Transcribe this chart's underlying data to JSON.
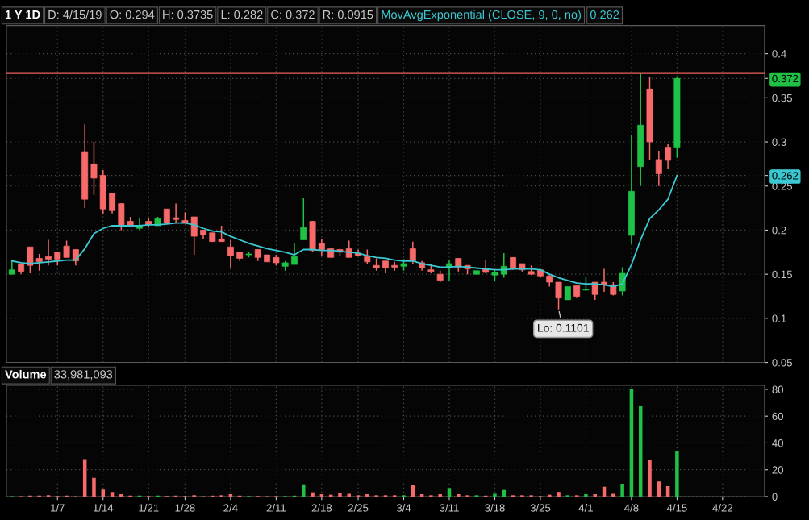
{
  "chart_data": [
    {
      "type": "candlestick",
      "title": "1 Y 1D",
      "categories": [
        null,
        null,
        null,
        null,
        null,
        null,
        null,
        null,
        null,
        null,
        null,
        null,
        null,
        null,
        null,
        null,
        null,
        null,
        null,
        null,
        null,
        null,
        null,
        null,
        null,
        null,
        null,
        null,
        null,
        null,
        null,
        null,
        null,
        null,
        null,
        null,
        null,
        null,
        null,
        null,
        null,
        null,
        null,
        null,
        null,
        null,
        null,
        null,
        null,
        null,
        null,
        null,
        null,
        null,
        null,
        null,
        null,
        null,
        null,
        null,
        null,
        null,
        null,
        null,
        null,
        null,
        null,
        null,
        null,
        null,
        null,
        null,
        null,
        null,
        null,
        null,
        null,
        null,
        null,
        null,
        null,
        null,
        null
      ],
      "ohlc": [
        [
          0.15,
          0.166,
          0.15,
          0.155
        ],
        [
          0.162,
          0.162,
          0.15,
          0.153
        ],
        [
          0.181,
          0.181,
          0.151,
          0.16
        ],
        [
          0.168,
          0.173,
          0.154,
          0.164
        ],
        [
          0.17,
          0.189,
          0.16,
          0.167
        ],
        [
          0.175,
          0.175,
          0.16,
          0.167
        ],
        [
          0.182,
          0.188,
          0.169,
          0.169
        ],
        [
          0.178,
          0.178,
          0.16,
          0.165
        ],
        [
          0.289,
          0.32,
          0.225,
          0.235
        ],
        [
          0.275,
          0.3,
          0.24,
          0.259
        ],
        [
          0.262,
          0.268,
          0.218,
          0.224
        ],
        [
          0.242,
          0.242,
          0.219,
          0.222
        ],
        [
          0.23,
          0.23,
          0.2,
          0.206
        ],
        [
          0.21,
          0.215,
          0.205,
          0.206
        ],
        [
          0.202,
          0.214,
          0.2,
          0.205
        ],
        [
          0.21,
          0.214,
          0.203,
          0.206
        ],
        [
          0.205,
          0.215,
          0.205,
          0.213
        ],
        [
          0.224,
          0.224,
          0.208,
          0.208
        ],
        [
          0.214,
          0.23,
          0.208,
          0.212
        ],
        [
          0.211,
          0.22,
          0.208,
          0.208
        ],
        [
          0.215,
          0.215,
          0.172,
          0.193
        ],
        [
          0.2,
          0.2,
          0.19,
          0.195
        ],
        [
          0.197,
          0.197,
          0.187,
          0.187
        ],
        [
          0.19,
          0.205,
          0.187,
          0.187
        ],
        [
          0.181,
          0.189,
          0.157,
          0.171
        ],
        [
          0.175,
          0.175,
          0.165,
          0.168
        ],
        [
          0.172,
          0.175,
          0.169,
          0.173
        ],
        [
          0.178,
          0.178,
          0.165,
          0.169
        ],
        [
          0.172,
          0.172,
          0.164,
          0.164
        ],
        [
          0.169,
          0.172,
          0.16,
          0.163
        ],
        [
          0.159,
          0.165,
          0.154,
          0.163
        ],
        [
          0.161,
          0.185,
          0.161,
          0.17
        ],
        [
          0.189,
          0.237,
          0.189,
          0.203
        ],
        [
          0.21,
          0.21,
          0.175,
          0.177
        ],
        [
          0.185,
          0.19,
          0.171,
          0.178
        ],
        [
          0.179,
          0.179,
          0.169,
          0.169
        ],
        [
          0.178,
          0.179,
          0.17,
          0.175
        ],
        [
          0.179,
          0.188,
          0.169,
          0.169
        ],
        [
          0.174,
          0.178,
          0.171,
          0.171
        ],
        [
          0.17,
          0.178,
          0.161,
          0.164
        ],
        [
          0.16,
          0.168,
          0.154,
          0.157
        ],
        [
          0.165,
          0.165,
          0.151,
          0.157
        ],
        [
          0.16,
          0.164,
          0.154,
          0.158
        ],
        [
          0.159,
          0.167,
          0.154,
          0.162
        ],
        [
          0.179,
          0.187,
          0.162,
          0.165
        ],
        [
          0.163,
          0.165,
          0.154,
          0.157
        ],
        [
          0.155,
          0.161,
          0.151,
          0.153
        ],
        [
          0.15,
          0.154,
          0.141,
          0.143
        ],
        [
          0.157,
          0.166,
          0.142,
          0.162
        ],
        [
          0.168,
          0.168,
          0.153,
          0.158
        ],
        [
          0.16,
          0.16,
          0.15,
          0.156
        ],
        [
          0.15,
          0.154,
          0.15,
          0.154
        ],
        [
          0.157,
          0.166,
          0.151,
          0.152
        ],
        [
          0.149,
          0.155,
          0.142,
          0.152
        ],
        [
          0.15,
          0.174,
          0.146,
          0.159
        ],
        [
          0.169,
          0.169,
          0.155,
          0.157
        ],
        [
          0.162,
          0.162,
          0.153,
          0.155
        ],
        [
          0.153,
          0.16,
          0.149,
          0.15
        ],
        [
          0.155,
          0.155,
          0.146,
          0.148
        ],
        [
          0.148,
          0.149,
          0.136,
          0.141
        ],
        [
          0.141,
          0.141,
          0.1101,
          0.123
        ],
        [
          0.121,
          0.136,
          0.121,
          0.136
        ],
        [
          0.137,
          0.137,
          0.123,
          0.125
        ],
        [
          0.132,
          0.147,
          0.131,
          0.133
        ],
        [
          0.141,
          0.141,
          0.121,
          0.127
        ],
        [
          0.141,
          0.156,
          0.13,
          0.138
        ],
        [
          0.138,
          0.141,
          0.126,
          0.127
        ],
        [
          0.131,
          0.158,
          0.126,
          0.151
        ],
        [
          0.194,
          0.308,
          0.184,
          0.244
        ],
        [
          0.272,
          0.378,
          0.25,
          0.319
        ],
        [
          0.36,
          0.374,
          0.28,
          0.3
        ],
        [
          0.28,
          0.29,
          0.25,
          0.264
        ],
        [
          0.294,
          0.298,
          0.269,
          0.279
        ],
        [
          0.294,
          0.3735,
          0.282,
          0.372
        ],
        null,
        null,
        null,
        null,
        null,
        null,
        null,
        null,
        null
      ],
      "colors": [
        "#1fc244",
        "#f86a6a",
        "#f86a6a",
        "#f86a6a",
        "#f86a6a",
        "#f86a6a",
        "#f86a6a",
        "#f86a6a",
        "#f86a6a",
        "#f86a6a",
        "#f86a6a",
        "#f86a6a",
        "#f86a6a",
        "#f86a6a",
        "#1fc244",
        "#f86a6a",
        "#1fc244",
        "#f86a6a",
        "#f86a6a",
        "#f86a6a",
        "#f86a6a",
        "#f86a6a",
        "#f86a6a",
        "#f86a6a",
        "#f86a6a",
        "#f86a6a",
        "#1fc244",
        "#f86a6a",
        "#f86a6a",
        "#f86a6a",
        "#1fc244",
        "#1fc244",
        "#1fc244",
        "#f86a6a",
        "#f86a6a",
        "#f86a6a",
        "#f86a6a",
        "#f86a6a",
        "#f86a6a",
        "#f86a6a",
        "#f86a6a",
        "#f86a6a",
        "#f86a6a",
        "#1fc244",
        "#f86a6a",
        "#f86a6a",
        "#f86a6a",
        "#f86a6a",
        "#1fc244",
        "#f86a6a",
        "#f86a6a",
        "#1fc244",
        "#f86a6a",
        "#1fc244",
        "#1fc244",
        "#f86a6a",
        "#f86a6a",
        "#f86a6a",
        "#f86a6a",
        "#f86a6a",
        "#f86a6a",
        "#1fc244",
        "#f86a6a",
        "#1fc244",
        "#f86a6a",
        "#f86a6a",
        "#f86a6a",
        "#1fc244",
        "#1fc244",
        "#1fc244",
        "#f86a6a",
        "#f86a6a",
        "#f86a6a",
        "#1fc244",
        null,
        null,
        null,
        null,
        null,
        null,
        null,
        null,
        null
      ],
      "series": [
        {
          "type": "line",
          "name": "MovAvgExponential (CLOSE, 9, 0, no)",
          "color": "#3cc8d2",
          "values": [
            0.165,
            0.163,
            0.162,
            0.163,
            0.164,
            0.165,
            0.166,
            0.166,
            0.179,
            0.196,
            0.202,
            0.205,
            0.205,
            0.205,
            0.205,
            0.206,
            0.206,
            0.207,
            0.208,
            0.208,
            0.206,
            0.202,
            0.199,
            0.198,
            0.193,
            0.189,
            0.185,
            0.182,
            0.179,
            0.177,
            0.175,
            0.172,
            0.178,
            0.178,
            0.177,
            0.177,
            0.176,
            0.175,
            0.174,
            0.171,
            0.169,
            0.168,
            0.166,
            0.165,
            0.165,
            0.162,
            0.16,
            0.158,
            0.158,
            0.159,
            0.158,
            0.157,
            0.156,
            0.155,
            0.155,
            0.156,
            0.156,
            0.156,
            0.155,
            0.15,
            0.146,
            0.143,
            0.14,
            0.139,
            0.139,
            0.138,
            0.136,
            0.139,
            0.161,
            0.189,
            0.213,
            0.223,
            0.235,
            0.262,
            null,
            null,
            null,
            null,
            null,
            null,
            null,
            null,
            null
          ]
        }
      ],
      "ylim": [
        0.05,
        0.432
      ],
      "yticks": [
        0.05,
        0.1,
        0.15,
        0.2,
        0.25,
        0.3,
        0.35,
        0.4,
        0.372,
        0.262
      ],
      "grid": true,
      "legend": false,
      "tick_labels": "y",
      "ref_lines": [
        {
          "axis": "y",
          "value": 0.378,
          "color": "#f0605c"
        }
      ],
      "annotations": [
        "D: 4/15/19",
        "O: 0.294",
        "H: 0.3735",
        "L: 0.282",
        "C: 0.372",
        "R: 0.0915",
        "0.262",
        "Lo: 0.1101"
      ]
    },
    {
      "type": "bar",
      "title": "Volume",
      "categories": [
        null,
        null,
        null,
        null,
        null,
        "1/7",
        null,
        null,
        null,
        null,
        "1/14",
        null,
        null,
        null,
        null,
        "1/21",
        null,
        null,
        null,
        "1/28",
        null,
        null,
        null,
        null,
        "2/4",
        null,
        null,
        null,
        null,
        "2/11",
        null,
        null,
        null,
        null,
        "2/18",
        null,
        null,
        null,
        "2/25",
        null,
        null,
        null,
        null,
        "3/4",
        null,
        null,
        null,
        null,
        "3/11",
        null,
        null,
        null,
        null,
        "3/18",
        null,
        null,
        null,
        null,
        "3/25",
        null,
        null,
        null,
        null,
        "4/1",
        null,
        null,
        null,
        null,
        "4/8",
        null,
        null,
        null,
        null,
        "4/15",
        null,
        null,
        null,
        null,
        "4/22",
        null,
        null,
        null,
        null
      ],
      "values": [
        0.3,
        0.3,
        0.7,
        0.7,
        1,
        0.4,
        0.7,
        0.3,
        28,
        14,
        5.3,
        3.5,
        1.8,
        0.7,
        0.7,
        0.4,
        0.7,
        0.4,
        0.7,
        0.4,
        1,
        0.3,
        0.7,
        1,
        1.8,
        0.7,
        0.4,
        0.4,
        0.3,
        0.4,
        0.4,
        0.7,
        9.2,
        3.2,
        1.8,
        1.4,
        2.5,
        2.1,
        1,
        1.8,
        1,
        1,
        1,
        1,
        8.5,
        1.8,
        1,
        1.8,
        6.4,
        1.8,
        1,
        1,
        0.7,
        2.1,
        5,
        1,
        1,
        1,
        0.4,
        1.4,
        3.5,
        1,
        1,
        1.8,
        1.8,
        7.4,
        2.1,
        9.6,
        80,
        68,
        27,
        11.3,
        7.8,
        34,
        null,
        null,
        null,
        null,
        null,
        null,
        null,
        null,
        null
      ],
      "colors": [
        "#1fc244",
        "#f86a6a",
        "#f86a6a",
        "#f86a6a",
        "#f86a6a",
        "#f86a6a",
        "#f86a6a",
        "#f86a6a",
        "#f86a6a",
        "#f86a6a",
        "#f86a6a",
        "#f86a6a",
        "#f86a6a",
        "#f86a6a",
        "#1fc244",
        "#f86a6a",
        "#1fc244",
        "#f86a6a",
        "#f86a6a",
        "#f86a6a",
        "#f86a6a",
        "#f86a6a",
        "#f86a6a",
        "#f86a6a",
        "#f86a6a",
        "#f86a6a",
        "#1fc244",
        "#f86a6a",
        "#f86a6a",
        "#f86a6a",
        "#1fc244",
        "#1fc244",
        "#1fc244",
        "#f86a6a",
        "#f86a6a",
        "#f86a6a",
        "#f86a6a",
        "#f86a6a",
        "#f86a6a",
        "#f86a6a",
        "#f86a6a",
        "#f86a6a",
        "#f86a6a",
        "#1fc244",
        "#f86a6a",
        "#f86a6a",
        "#f86a6a",
        "#f86a6a",
        "#1fc244",
        "#f86a6a",
        "#f86a6a",
        "#1fc244",
        "#f86a6a",
        "#1fc244",
        "#1fc244",
        "#f86a6a",
        "#f86a6a",
        "#f86a6a",
        "#f86a6a",
        "#f86a6a",
        "#f86a6a",
        "#1fc244",
        "#f86a6a",
        "#1fc244",
        "#f86a6a",
        "#f86a6a",
        "#f86a6a",
        "#1fc244",
        "#1fc244",
        "#1fc244",
        "#f86a6a",
        "#f86a6a",
        "#f86a6a",
        "#1fc244",
        null,
        null,
        null,
        null,
        null,
        null,
        null,
        null,
        null
      ],
      "ylim": [
        0,
        83
      ],
      "yticks": [
        0,
        20,
        40,
        60,
        80
      ],
      "grid": true,
      "legend": false,
      "annotations": [
        "33,981,093"
      ]
    }
  ]
}
